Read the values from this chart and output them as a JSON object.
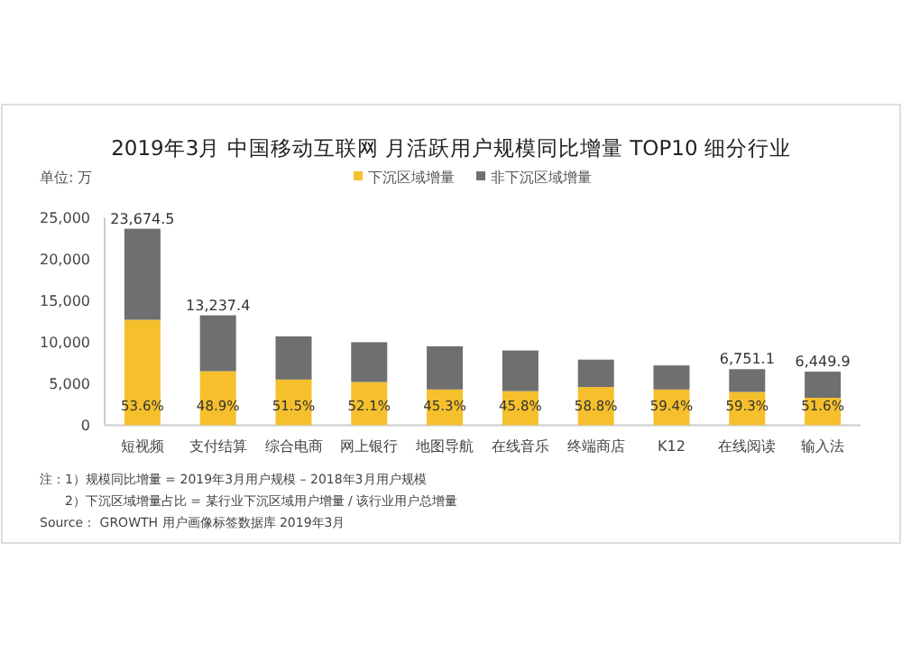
{
  "chart_data": {
    "type": "bar",
    "stacked": true,
    "title": "2019年3月 中国移动互联网 月活跃用户规模同比增量 TOP10 细分行业",
    "ylabel": "单位: 万",
    "categories": [
      "短视频",
      "支付结算",
      "综合电商",
      "网上银行",
      "地图导航",
      "在线音乐",
      "终端商店",
      "K12",
      "在线阅读",
      "输入法"
    ],
    "series": [
      {
        "name": "下沉区域增量",
        "color": "#f5c02c",
        "values": [
          12700,
          6500,
          5500,
          5200,
          4300,
          4100,
          4600,
          4300,
          4000,
          3300
        ]
      },
      {
        "name": "非下沉区域增量",
        "color": "#6f6f6f",
        "values": [
          10974.5,
          6737.4,
          5200,
          4800,
          5200,
          4900,
          3300,
          2900,
          2751.1,
          3149.9
        ]
      }
    ],
    "totals": [
      "23,674.5",
      "13,237.4",
      null,
      null,
      null,
      null,
      null,
      null,
      "6,751.1",
      "6,449.9"
    ],
    "ylim": [
      0,
      25000
    ],
    "yticks": [
      {
        "value": 0,
        "label": "0"
      },
      {
        "value": 5000,
        "label": "5,000"
      },
      {
        "value": 10000,
        "label": "10,000"
      },
      {
        "value": 15000,
        "label": "15,000"
      },
      {
        "value": 20000,
        "label": "20,000"
      },
      {
        "value": 25000,
        "label": "25,000"
      }
    ],
    "legend": "top",
    "grid": false,
    "annotations": [
      "53.6%",
      "48.9%",
      "51.5%",
      "52.1%",
      "45.3%",
      "45.8%",
      "58.8%",
      "59.4%",
      "59.3%",
      "51.6%",
      "注：1）规模同比增量 = 2019年3月用户规模 – 2018年3月用户规模",
      "2）下沉区域增量占比 = 某行业下沉区域用户增量 / 该行业用户总增量",
      "Source： GROWTH 用户画像标签数据库 2019年3月"
    ]
  }
}
